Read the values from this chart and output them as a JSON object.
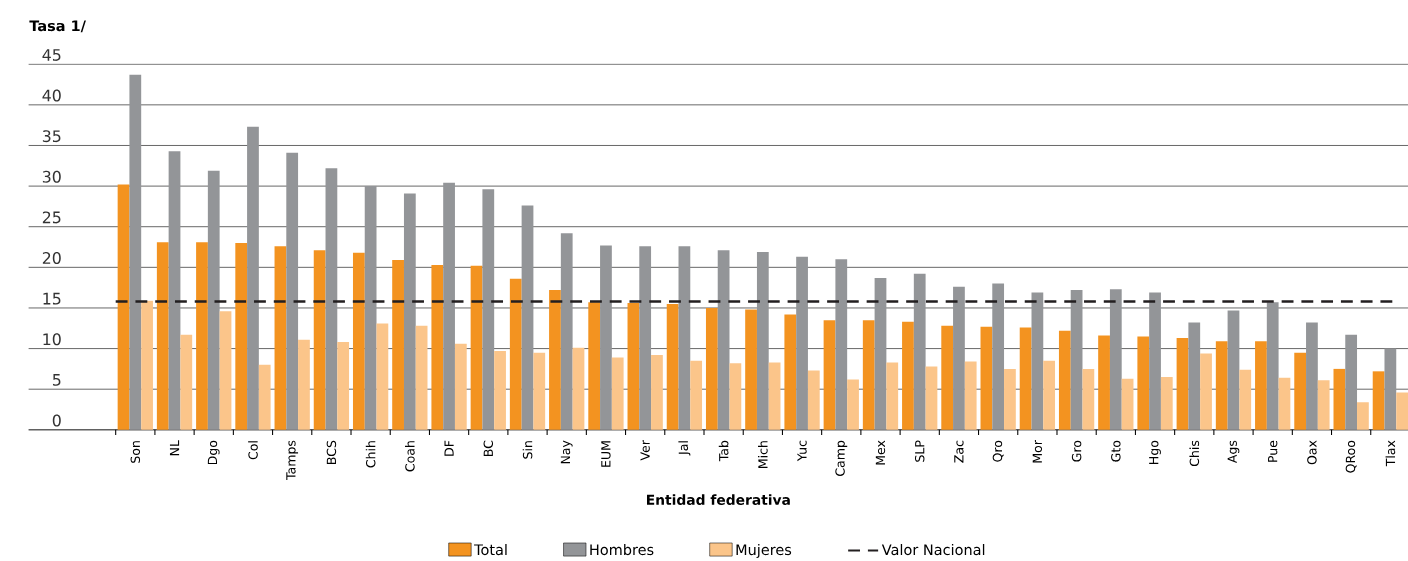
{
  "chart_data": {
    "type": "bar",
    "ylabel": "Tasa 1/",
    "xlabel": "Entidad federativa",
    "categories": [
      "Son",
      "NL",
      "Dgo",
      "Col",
      "Tamps",
      "BCS",
      "Chih",
      "Coah",
      "DF",
      "BC",
      "Sin",
      "Nay",
      "EUM",
      "Ver",
      "Jal",
      "Tab",
      "Mich",
      "Yuc",
      "Camp",
      "Mex",
      "SLP",
      "Zac",
      "Qro",
      "Mor",
      "Gro",
      "Gto",
      "Hgo",
      "Chis",
      "Ags",
      "Pue",
      "Oax",
      "QRoo",
      "Tlax"
    ],
    "series": [
      {
        "name": "Total",
        "color": "#f39320",
        "values": [
          30.2,
          23.1,
          23.1,
          23.0,
          22.6,
          22.1,
          21.8,
          20.9,
          20.3,
          20.2,
          18.6,
          17.2,
          15.7,
          15.6,
          15.5,
          15.0,
          14.8,
          14.2,
          13.5,
          13.5,
          13.3,
          12.8,
          12.7,
          12.6,
          12.2,
          11.6,
          11.5,
          11.3,
          10.9,
          10.9,
          9.5,
          7.5,
          7.2
        ]
      },
      {
        "name": "Hombres",
        "color": "#939598",
        "values": [
          43.7,
          34.3,
          31.9,
          37.3,
          34.1,
          32.2,
          30.0,
          29.1,
          30.4,
          29.6,
          27.6,
          24.2,
          22.7,
          22.6,
          22.6,
          22.1,
          21.9,
          21.3,
          21.0,
          18.7,
          19.2,
          17.6,
          18.0,
          16.9,
          17.2,
          17.3,
          16.9,
          13.2,
          14.7,
          15.7,
          13.2,
          11.7,
          10.0
        ]
      },
      {
        "name": "Mujeres",
        "color": "#fbc58a",
        "values": [
          15.9,
          11.7,
          14.6,
          8.0,
          11.1,
          10.8,
          13.1,
          12.8,
          10.6,
          9.7,
          9.5,
          10.1,
          8.9,
          9.2,
          8.5,
          8.2,
          8.3,
          7.3,
          6.2,
          8.3,
          7.8,
          8.4,
          7.5,
          8.5,
          7.5,
          6.3,
          6.5,
          9.4,
          7.4,
          6.4,
          6.1,
          3.4,
          4.6
        ]
      }
    ],
    "ylim": [
      0,
      45
    ],
    "yticks": [
      0,
      5,
      10,
      15,
      20,
      25,
      30,
      35,
      40,
      45
    ],
    "grid": "y",
    "legend": "bottom",
    "ref_lines": [
      {
        "axis": "y",
        "value": 15.8,
        "label": "Valor Nacional",
        "color": "#231f20",
        "line_style": "dashed"
      }
    ]
  }
}
